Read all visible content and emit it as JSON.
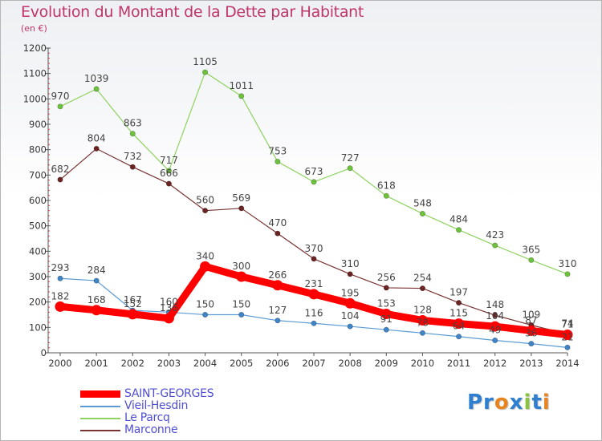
{
  "title": "Evolution du Montant de la Dette par Habitant",
  "subtitle": "(en €)",
  "brand": {
    "parts": [
      "Pr",
      "o",
      "x",
      "i",
      "t",
      "i"
    ],
    "colors": [
      "#2f7fd0",
      "#e8841e",
      "#2f7fd0",
      "#8ac43f",
      "#2f7fd0",
      "#e8841e"
    ]
  },
  "chart_data": {
    "type": "line",
    "x": [
      "2000",
      "2001",
      "2002",
      "2003",
      "2004",
      "2005",
      "2006",
      "2007",
      "2008",
      "2009",
      "2010",
      "2011",
      "2012",
      "2013",
      "2014"
    ],
    "ylim": [
      0,
      1200
    ],
    "yticks": [
      0,
      100,
      200,
      300,
      400,
      500,
      600,
      700,
      800,
      900,
      1000,
      1100,
      1200
    ],
    "grid": false,
    "legend_position": "bottom-left",
    "series": [
      {
        "name": "Le Parcq",
        "color": "#8fd35e",
        "marker": "#6cc23a",
        "values": [
          970,
          1039,
          863,
          717,
          1105,
          1011,
          753,
          673,
          727,
          618,
          548,
          484,
          423,
          365,
          310
        ],
        "labels": [
          "970",
          "1039",
          "863",
          "717",
          "1105",
          "1011",
          "753",
          "673",
          "727",
          "618",
          "548",
          "484",
          "423",
          "365",
          "310"
        ]
      },
      {
        "name": "Marconne",
        "color": "#7a3333",
        "marker": "#6a2222",
        "values": [
          682,
          804,
          732,
          666,
          560,
          569,
          470,
          370,
          310,
          256,
          254,
          197,
          148,
          109,
          74
        ],
        "labels": [
          "682",
          "804",
          "732",
          "666",
          "560",
          "569",
          "470",
          "370",
          "310",
          "256",
          "254",
          "197",
          "148",
          "109",
          "74"
        ]
      },
      {
        "name": "Vieil-Hesdin",
        "color": "#5b9bd5",
        "marker": "#3e84c6",
        "values": [
          293,
          284,
          167,
          160,
          150,
          150,
          127,
          116,
          104,
          91,
          78,
          64,
          49,
          36,
          21
        ],
        "labels": [
          "293",
          "284",
          "167",
          "160",
          "150",
          "150",
          "127",
          "116",
          "104",
          "91",
          "78",
          "64",
          "49",
          "36",
          "21"
        ]
      },
      {
        "name": "SAINT-GEORGES",
        "color": "#ff0000",
        "marker": "#ff0000",
        "values": [
          182,
          168,
          152,
          136,
          340,
          300,
          266,
          231,
          195,
          153,
          128,
          115,
          104,
          87,
          71
        ],
        "labels": [
          "182",
          "168",
          "152",
          "136",
          "340",
          "300",
          "266",
          "231",
          "195",
          "153",
          "128",
          "115",
          "104",
          "87",
          "71"
        ]
      }
    ]
  },
  "legend": [
    {
      "name": "SAINT-GEORGES",
      "color": "#ff0000",
      "thick": true
    },
    {
      "name": "Vieil-Hesdin",
      "color": "#5b9bd5",
      "thick": false
    },
    {
      "name": "Le Parcq",
      "color": "#8fd35e",
      "thick": false
    },
    {
      "name": "Marconne",
      "color": "#7a3333",
      "thick": false
    }
  ]
}
